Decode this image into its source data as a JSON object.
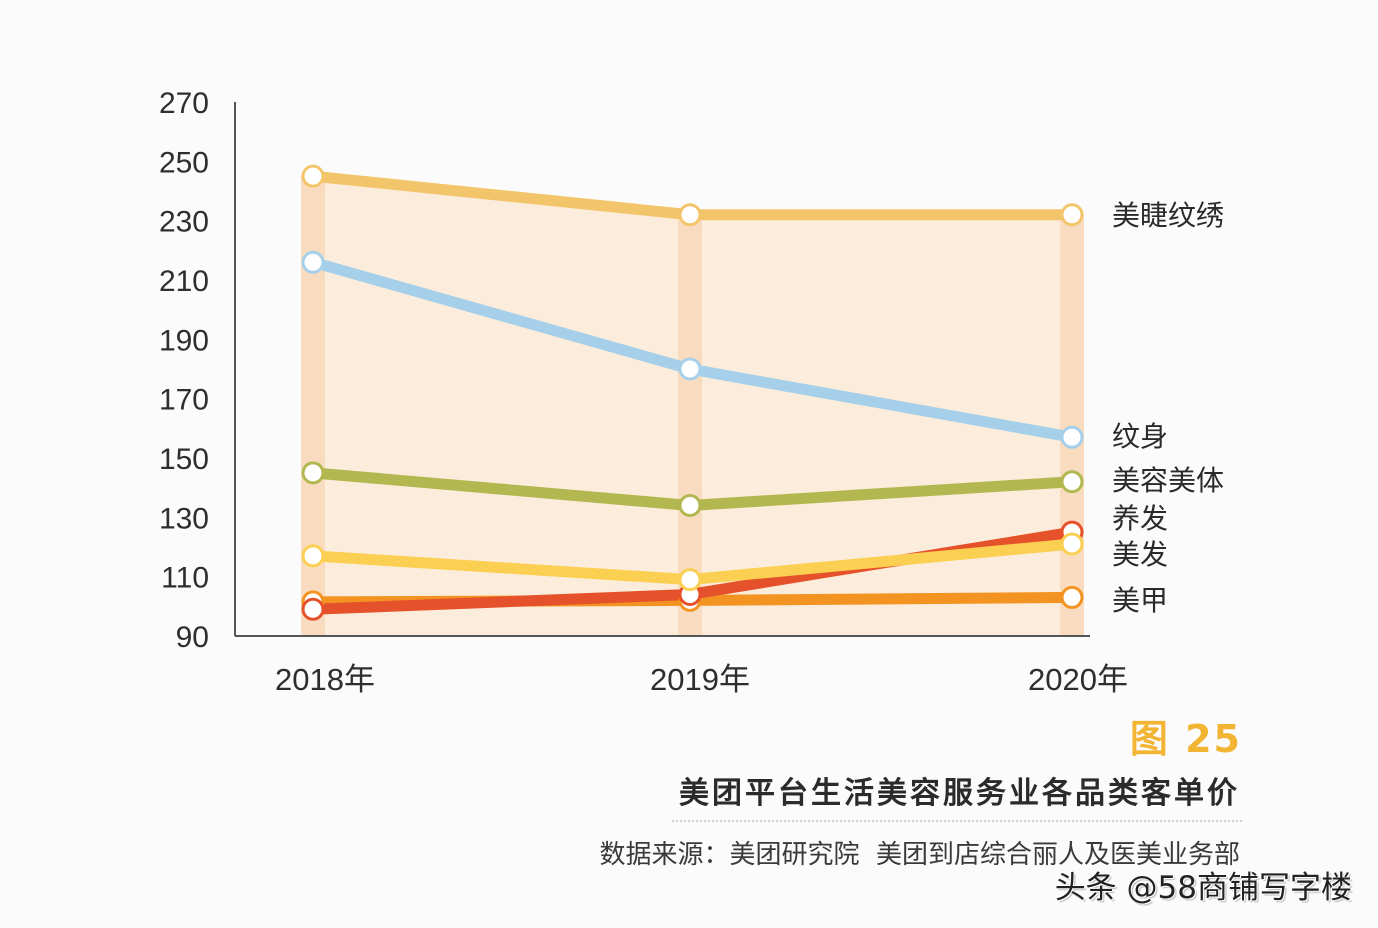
{
  "chart_data": {
    "type": "line",
    "title": "美团平台生活美容服务业各品类客单价",
    "figure_number": "图 25",
    "xlabel": "",
    "ylabel": "",
    "categories": [
      "2018年",
      "2019年",
      "2020年"
    ],
    "ylim": [
      90,
      270
    ],
    "yticks": [
      270,
      250,
      230,
      210,
      190,
      170,
      150,
      130,
      110,
      90
    ],
    "grid": false,
    "legend_position": "right (inline labels at line ends)",
    "series": [
      {
        "name": "美睫纹绣",
        "color": "#f3c56b",
        "values": [
          245,
          232,
          232
        ]
      },
      {
        "name": "纹身",
        "color": "#a6d0ea",
        "values": [
          216,
          180,
          157
        ]
      },
      {
        "name": "美容美体",
        "color": "#b2b84f",
        "values": [
          145,
          134,
          142
        ]
      },
      {
        "name": "养发",
        "color": "#e5512a",
        "values": [
          99,
          104,
          125
        ]
      },
      {
        "name": "美发",
        "color": "#fbd052",
        "values": [
          117,
          109,
          121
        ]
      },
      {
        "name": "美甲",
        "color": "#f39422",
        "values": [
          101.5,
          102,
          103
        ]
      }
    ],
    "source": "数据来源：美团研究院  美团到店综合丽人及医美业务部"
  },
  "labels": {
    "figure_number": "图 25",
    "title": "美团平台生活美容服务业各品类客单价",
    "source": "数据来源：美团研究院  美团到店综合丽人及医美业务部",
    "watermark": "头条 @58商铺写字楼"
  },
  "colors": {
    "band": "#f9dcc0",
    "area_fill": "#fcecdb",
    "axis": "#555555",
    "accent": "#f2b533"
  }
}
